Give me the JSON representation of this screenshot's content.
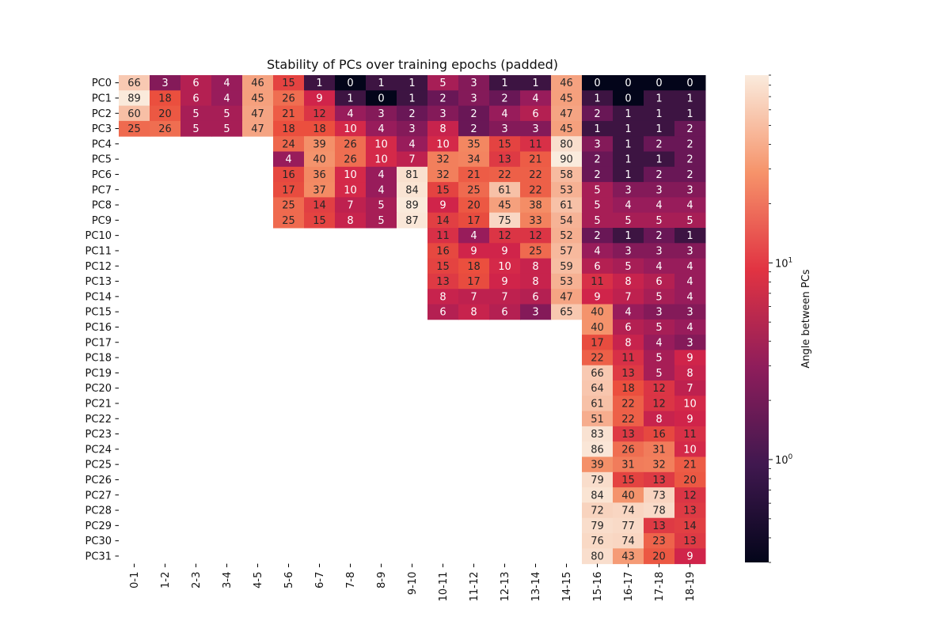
{
  "chart_data": {
    "type": "heatmap",
    "title": "Stability of PCs over training epochs (padded)",
    "xlabel": "",
    "ylabel": "",
    "colorbar_label": "Angle between PCs",
    "color_scale": "log",
    "colormap": "rocket",
    "vmin": 0.3,
    "vmax": 90,
    "colorbar_tick_labels": [
      "10^0",
      "10^1"
    ],
    "x_categories": [
      "0-1",
      "1-2",
      "2-3",
      "3-4",
      "4-5",
      "5-6",
      "6-7",
      "7-8",
      "8-9",
      "9-10",
      "10-11",
      "11-12",
      "12-13",
      "13-14",
      "14-15",
      "15-16",
      "16-17",
      "17-18",
      "18-19"
    ],
    "y_categories": [
      "PC0",
      "PC1",
      "PC2",
      "PC3",
      "PC4",
      "PC5",
      "PC6",
      "PC7",
      "PC8",
      "PC9",
      "PC10",
      "PC11",
      "PC12",
      "PC13",
      "PC14",
      "PC15",
      "PC16",
      "PC17",
      "PC18",
      "PC19",
      "PC20",
      "PC21",
      "PC22",
      "PC23",
      "PC24",
      "PC25",
      "PC26",
      "PC27",
      "PC28",
      "PC29",
      "PC30",
      "PC31"
    ],
    "values": [
      [
        66,
        3,
        6,
        4,
        46,
        15,
        1,
        0,
        1,
        1,
        5,
        3,
        1,
        1,
        46,
        0,
        0,
        0,
        0
      ],
      [
        89,
        18,
        6,
        4,
        45,
        26,
        9,
        1,
        0,
        1,
        2,
        3,
        2,
        4,
        45,
        1,
        0,
        1,
        1
      ],
      [
        60,
        20,
        5,
        5,
        47,
        21,
        12,
        4,
        3,
        2,
        3,
        2,
        4,
        6,
        47,
        2,
        1,
        1,
        1
      ],
      [
        25,
        26,
        5,
        5,
        47,
        18,
        18,
        10,
        4,
        3,
        8,
        2,
        3,
        3,
        45,
        1,
        1,
        1,
        2
      ],
      [
        null,
        null,
        null,
        null,
        null,
        24,
        39,
        26,
        10,
        4,
        10,
        35,
        15,
        11,
        80,
        3,
        1,
        2,
        2
      ],
      [
        null,
        null,
        null,
        null,
        null,
        4,
        40,
        26,
        10,
        7,
        32,
        34,
        13,
        21,
        90,
        2,
        1,
        1,
        2
      ],
      [
        null,
        null,
        null,
        null,
        null,
        16,
        36,
        10,
        4,
        81,
        32,
        21,
        22,
        22,
        58,
        2,
        1,
        2,
        2
      ],
      [
        null,
        null,
        null,
        null,
        null,
        17,
        37,
        10,
        4,
        84,
        15,
        25,
        61,
        22,
        53,
        5,
        3,
        3,
        3
      ],
      [
        null,
        null,
        null,
        null,
        null,
        25,
        14,
        7,
        5,
        89,
        9,
        20,
        45,
        38,
        61,
        5,
        4,
        4,
        4
      ],
      [
        null,
        null,
        null,
        null,
        null,
        25,
        15,
        8,
        5,
        87,
        14,
        17,
        75,
        33,
        54,
        5,
        5,
        5,
        5
      ],
      [
        null,
        null,
        null,
        null,
        null,
        null,
        null,
        null,
        null,
        null,
        11,
        4,
        12,
        12,
        52,
        2,
        1,
        2,
        1
      ],
      [
        null,
        null,
        null,
        null,
        null,
        null,
        null,
        null,
        null,
        null,
        16,
        9,
        9,
        25,
        57,
        4,
        3,
        3,
        3
      ],
      [
        null,
        null,
        null,
        null,
        null,
        null,
        null,
        null,
        null,
        null,
        15,
        18,
        10,
        8,
        59,
        6,
        5,
        4,
        4
      ],
      [
        null,
        null,
        null,
        null,
        null,
        null,
        null,
        null,
        null,
        null,
        13,
        17,
        9,
        8,
        53,
        11,
        8,
        6,
        4
      ],
      [
        null,
        null,
        null,
        null,
        null,
        null,
        null,
        null,
        null,
        null,
        8,
        7,
        7,
        6,
        47,
        9,
        7,
        5,
        4
      ],
      [
        null,
        null,
        null,
        null,
        null,
        null,
        null,
        null,
        null,
        null,
        6,
        8,
        6,
        3,
        65,
        40,
        4,
        3,
        3
      ],
      [
        null,
        null,
        null,
        null,
        null,
        null,
        null,
        null,
        null,
        null,
        null,
        null,
        null,
        null,
        null,
        40,
        6,
        5,
        4
      ],
      [
        null,
        null,
        null,
        null,
        null,
        null,
        null,
        null,
        null,
        null,
        null,
        null,
        null,
        null,
        null,
        17,
        8,
        4,
        3
      ],
      [
        null,
        null,
        null,
        null,
        null,
        null,
        null,
        null,
        null,
        null,
        null,
        null,
        null,
        null,
        null,
        22,
        11,
        5,
        9
      ],
      [
        null,
        null,
        null,
        null,
        null,
        null,
        null,
        null,
        null,
        null,
        null,
        null,
        null,
        null,
        null,
        66,
        13,
        5,
        8
      ],
      [
        null,
        null,
        null,
        null,
        null,
        null,
        null,
        null,
        null,
        null,
        null,
        null,
        null,
        null,
        null,
        64,
        18,
        12,
        7
      ],
      [
        null,
        null,
        null,
        null,
        null,
        null,
        null,
        null,
        null,
        null,
        null,
        null,
        null,
        null,
        null,
        61,
        22,
        12,
        10
      ],
      [
        null,
        null,
        null,
        null,
        null,
        null,
        null,
        null,
        null,
        null,
        null,
        null,
        null,
        null,
        null,
        51,
        22,
        8,
        9
      ],
      [
        null,
        null,
        null,
        null,
        null,
        null,
        null,
        null,
        null,
        null,
        null,
        null,
        null,
        null,
        null,
        83,
        13,
        16,
        11
      ],
      [
        null,
        null,
        null,
        null,
        null,
        null,
        null,
        null,
        null,
        null,
        null,
        null,
        null,
        null,
        null,
        86,
        26,
        31,
        10
      ],
      [
        null,
        null,
        null,
        null,
        null,
        null,
        null,
        null,
        null,
        null,
        null,
        null,
        null,
        null,
        null,
        39,
        31,
        32,
        21
      ],
      [
        null,
        null,
        null,
        null,
        null,
        null,
        null,
        null,
        null,
        null,
        null,
        null,
        null,
        null,
        null,
        79,
        15,
        13,
        20
      ],
      [
        null,
        null,
        null,
        null,
        null,
        null,
        null,
        null,
        null,
        null,
        null,
        null,
        null,
        null,
        null,
        84,
        40,
        73,
        12
      ],
      [
        null,
        null,
        null,
        null,
        null,
        null,
        null,
        null,
        null,
        null,
        null,
        null,
        null,
        null,
        null,
        72,
        74,
        78,
        13
      ],
      [
        null,
        null,
        null,
        null,
        null,
        null,
        null,
        null,
        null,
        null,
        null,
        null,
        null,
        null,
        null,
        79,
        77,
        13,
        14
      ],
      [
        null,
        null,
        null,
        null,
        null,
        null,
        null,
        null,
        null,
        null,
        null,
        null,
        null,
        null,
        null,
        76,
        74,
        23,
        13
      ],
      [
        null,
        null,
        null,
        null,
        null,
        null,
        null,
        null,
        null,
        null,
        null,
        null,
        null,
        null,
        null,
        80,
        43,
        20,
        9
      ]
    ]
  }
}
